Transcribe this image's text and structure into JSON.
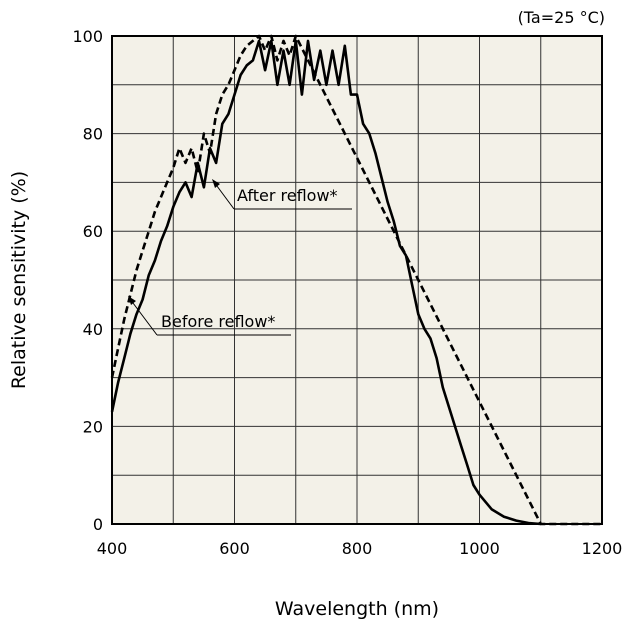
{
  "chart_data": {
    "type": "line",
    "condition_note": "(Ta=25 °C)",
    "xlabel": "Wavelength (nm)",
    "ylabel": "Relative sensitivity (%)",
    "xlim": [
      400,
      1200
    ],
    "ylim": [
      0,
      100
    ],
    "x_ticks": [
      400,
      600,
      800,
      1000,
      1200
    ],
    "y_ticks": [
      0,
      20,
      40,
      60,
      80,
      100
    ],
    "grid": true,
    "background": "#f3f1e8",
    "series": [
      {
        "name": "After reflow*",
        "style": "solid",
        "x": [
          400,
          410,
          420,
          430,
          440,
          450,
          460,
          470,
          480,
          490,
          500,
          510,
          520,
          530,
          540,
          550,
          560,
          570,
          580,
          590,
          600,
          610,
          620,
          630,
          640,
          650,
          660,
          670,
          680,
          690,
          700,
          710,
          720,
          730,
          740,
          750,
          760,
          770,
          780,
          790,
          800,
          810,
          820,
          830,
          840,
          850,
          860,
          870,
          880,
          890,
          900,
          910,
          920,
          930,
          940,
          950,
          960,
          970,
          980,
          990,
          1000,
          1020,
          1040,
          1060,
          1080,
          1100
        ],
        "y": [
          23,
          29,
          34,
          39,
          43,
          46,
          51,
          54,
          58,
          61,
          65,
          68,
          70,
          67,
          74,
          69,
          77,
          74,
          82,
          84,
          88,
          92,
          94,
          95,
          99,
          93,
          99,
          90,
          97,
          90,
          99,
          88,
          99,
          91,
          97,
          90,
          97,
          90,
          98,
          88,
          88,
          82,
          80,
          76,
          71,
          66,
          62,
          57,
          55,
          49,
          43,
          40,
          38,
          34,
          28,
          24,
          20,
          16,
          12,
          8,
          6,
          3,
          1.5,
          0.7,
          0.2,
          0
        ]
      },
      {
        "name": "Before reflow*",
        "style": "dashed",
        "x": [
          400,
          410,
          420,
          430,
          440,
          450,
          460,
          470,
          480,
          490,
          500,
          510,
          520,
          530,
          540,
          550,
          560,
          570,
          580,
          590,
          600,
          610,
          620,
          630,
          640,
          650,
          660,
          670,
          680,
          690,
          700,
          1100,
          1120,
          1140,
          1160,
          1180,
          1200
        ],
        "y": [
          30,
          36,
          42,
          47,
          52,
          56,
          60,
          64,
          67,
          70,
          73,
          77,
          74,
          77,
          72,
          80,
          76,
          84,
          88,
          90,
          93,
          96,
          98,
          99,
          100,
          97,
          100,
          95,
          99,
          96,
          100,
          0,
          0,
          0,
          0,
          0,
          0
        ]
      }
    ]
  }
}
